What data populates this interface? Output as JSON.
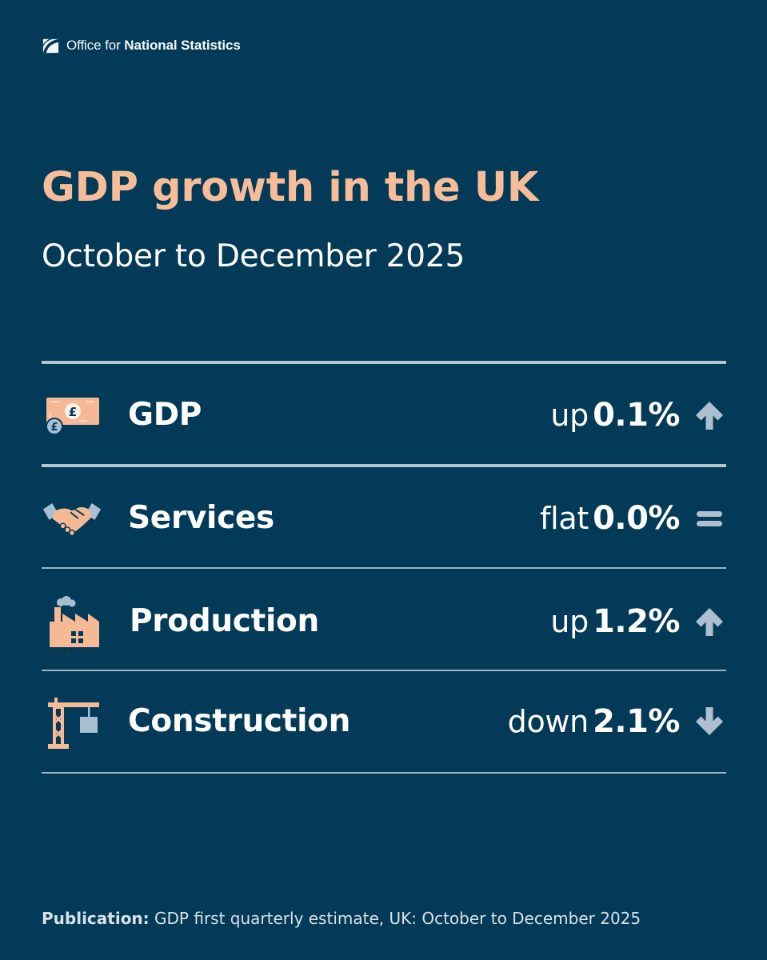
{
  "header": {
    "org_prefix": "Office for",
    "org_name": "National Statistics",
    "logo_icon": "ons-logo-icon"
  },
  "title": "GDP growth in the UK",
  "subtitle": "October to December 2025",
  "colors": {
    "background": "#033a58",
    "title": "#f7bc98",
    "icon_peach": "#f6b996",
    "icon_light": "#f3ddd0",
    "icon_steel": "#a8bfd2",
    "trend_arrow": "#aec0cf",
    "divider": "#b4c4d1"
  },
  "metrics": [
    {
      "label": "GDP",
      "direction": "up",
      "value": "0.1%",
      "icon": "money-icon",
      "trend_icon": "arrow-up-icon"
    },
    {
      "label": "Services",
      "direction": "flat",
      "value": "0.0%",
      "icon": "handshake-icon",
      "trend_icon": "equals-icon"
    },
    {
      "label": "Production",
      "direction": "up",
      "value": "1.2%",
      "icon": "factory-icon",
      "trend_icon": "arrow-up-icon"
    },
    {
      "label": "Construction",
      "direction": "down",
      "value": "2.1%",
      "icon": "crane-icon",
      "trend_icon": "arrow-down-icon"
    }
  ],
  "footer": {
    "label": "Publication:",
    "text": "GDP first quarterly estimate, UK: October to December 2025"
  }
}
